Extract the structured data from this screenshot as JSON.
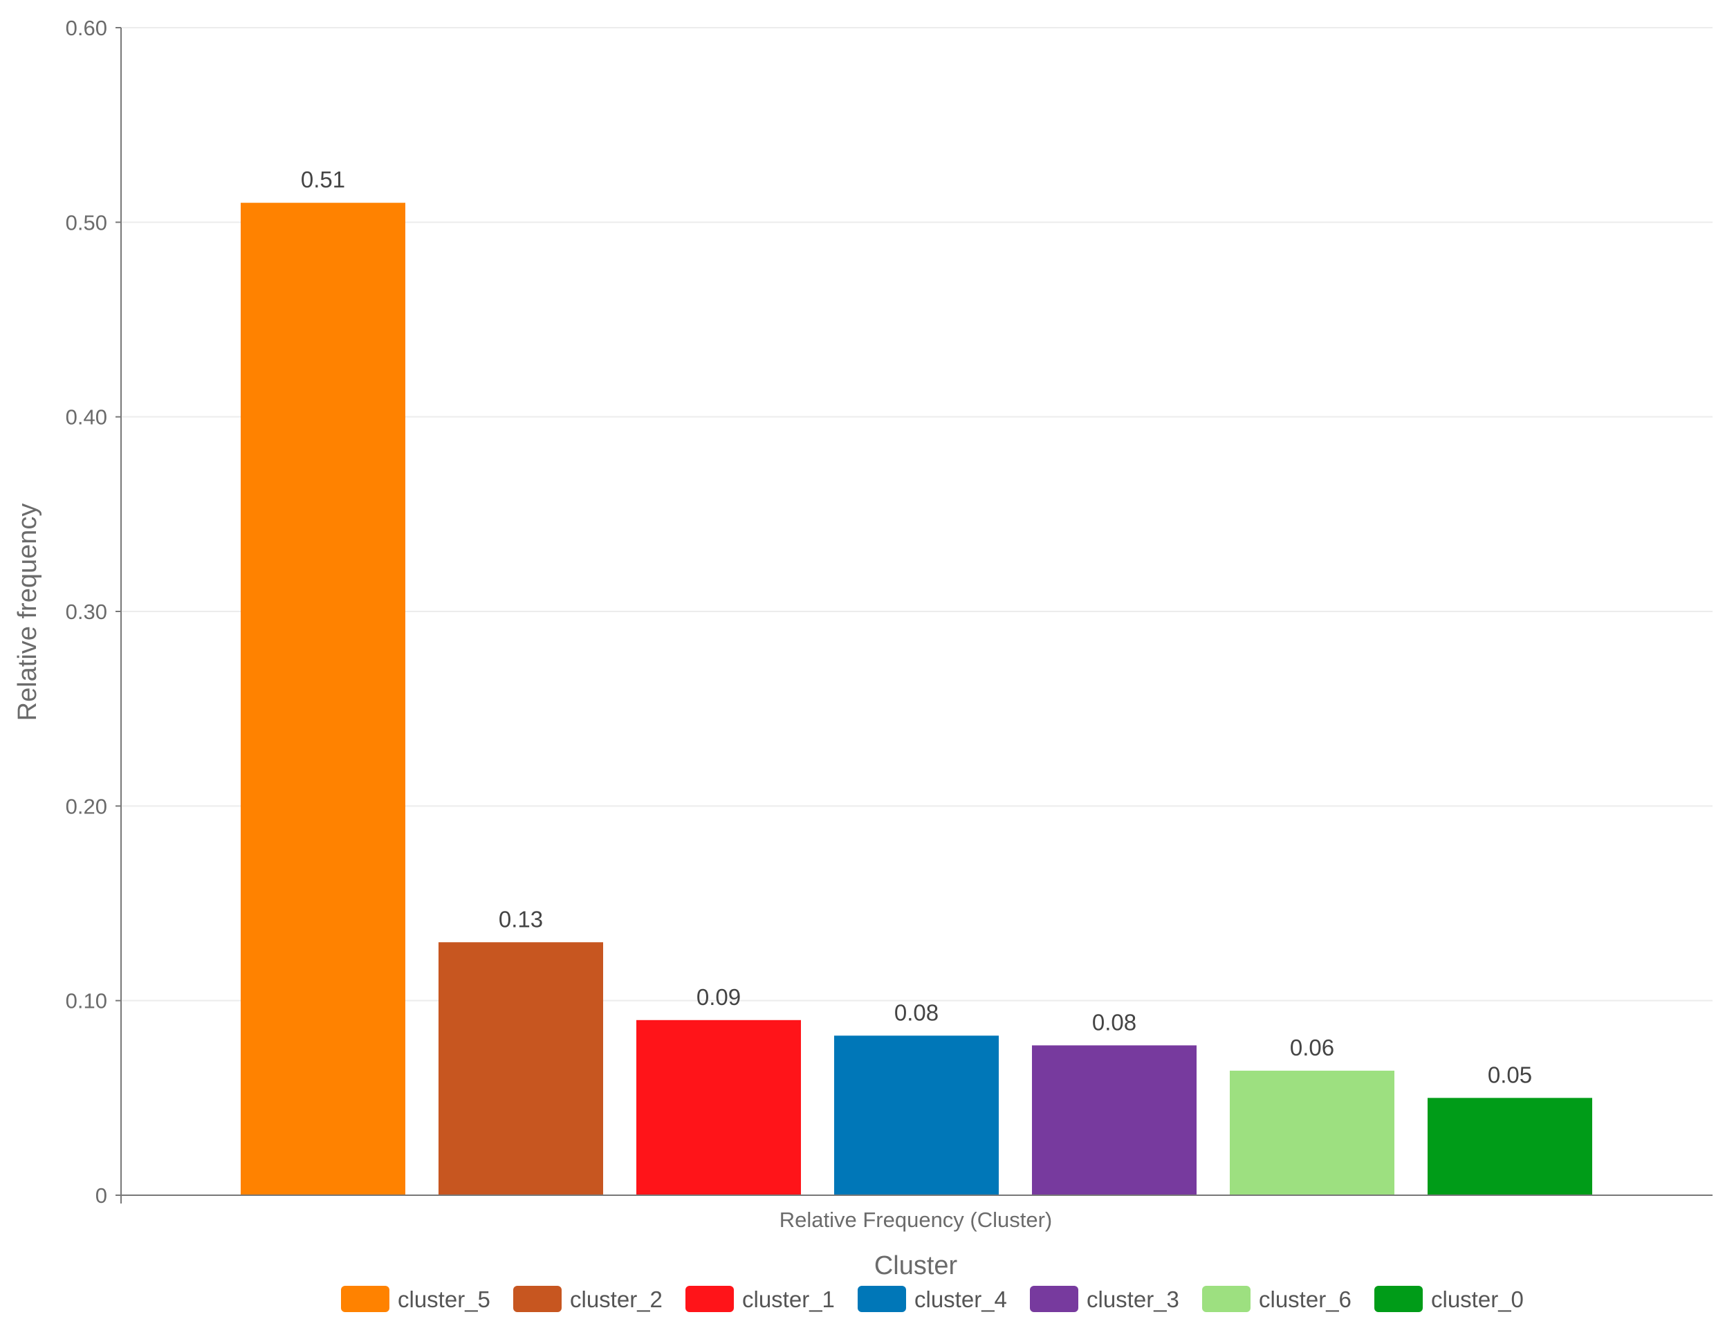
{
  "chart_data": {
    "type": "bar",
    "categories": [
      "cluster_5",
      "cluster_2",
      "cluster_1",
      "cluster_4",
      "cluster_3",
      "cluster_6",
      "cluster_0"
    ],
    "values": [
      0.51,
      0.13,
      0.09,
      0.082,
      0.077,
      0.064,
      0.05
    ],
    "data_labels": [
      "0.51",
      "0.13",
      "0.09",
      "0.08",
      "0.08",
      "0.06",
      "0.05"
    ],
    "colors": [
      "#ff8200",
      "#c75620",
      "#ff1419",
      "#0077b8",
      "#773a9e",
      "#9de080",
      "#009c18"
    ],
    "title": "",
    "xlabel": "Relative Frequency (Cluster)",
    "ylabel": "Relative frequency",
    "ylim": [
      0,
      0.6
    ],
    "yticks": [
      0,
      0.1,
      0.2,
      0.3,
      0.4,
      0.5,
      0.6
    ],
    "ytick_labels": [
      "0",
      "0.10",
      "0.20",
      "0.30",
      "0.40",
      "0.50",
      "0.60"
    ],
    "grid": true,
    "legend": {
      "title": "Cluster",
      "position": "bottom",
      "entries": [
        "cluster_5",
        "cluster_2",
        "cluster_1",
        "cluster_4",
        "cluster_3",
        "cluster_6",
        "cluster_0"
      ]
    }
  }
}
